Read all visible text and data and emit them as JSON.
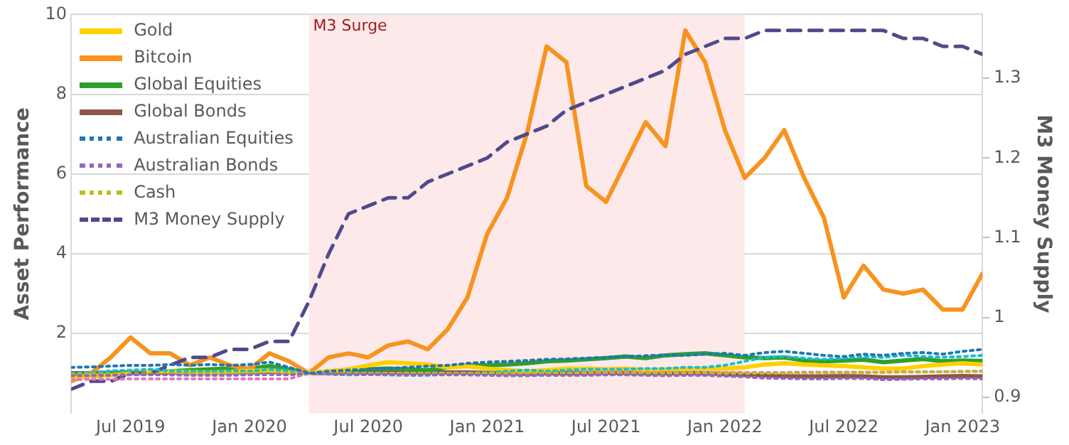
{
  "chart_data": {
    "type": "line",
    "ylabel": "Asset Performance",
    "y2label": "M3 Money Supply",
    "x": [
      "2019-04",
      "2019-05",
      "2019-06",
      "2019-07",
      "2019-08",
      "2019-09",
      "2019-10",
      "2019-11",
      "2019-12",
      "2020-01",
      "2020-02",
      "2020-03",
      "2020-04",
      "2020-05",
      "2020-06",
      "2020-07",
      "2020-08",
      "2020-09",
      "2020-10",
      "2020-11",
      "2020-12",
      "2021-01",
      "2021-02",
      "2021-03",
      "2021-04",
      "2021-05",
      "2021-06",
      "2021-07",
      "2021-08",
      "2021-09",
      "2021-10",
      "2021-11",
      "2021-12",
      "2022-01",
      "2022-02",
      "2022-03",
      "2022-04",
      "2022-05",
      "2022-06",
      "2022-07",
      "2022-08",
      "2022-09",
      "2022-10",
      "2022-11",
      "2022-12",
      "2023-01",
      "2023-02"
    ],
    "xlim": [
      "2019-04",
      "2023-02"
    ],
    "xticks": [
      {
        "value": "2019-07",
        "label": "Jul 2019"
      },
      {
        "value": "2020-01",
        "label": "Jan 2020"
      },
      {
        "value": "2020-07",
        "label": "Jul 2020"
      },
      {
        "value": "2021-01",
        "label": "Jan 2021"
      },
      {
        "value": "2021-07",
        "label": "Jul 2021"
      },
      {
        "value": "2022-01",
        "label": "Jan 2022"
      },
      {
        "value": "2022-07",
        "label": "Jul 2022"
      },
      {
        "value": "2023-01",
        "label": "Jan 2023"
      }
    ],
    "ylim": [
      0,
      10
    ],
    "yticks": [
      2,
      4,
      6,
      8,
      10
    ],
    "y2lim": [
      0.88,
      1.38
    ],
    "y2ticks": [
      0.9,
      1,
      1.1,
      1.2,
      1.3
    ],
    "grid": "y",
    "legend": "top left",
    "marker": "none",
    "bands": [
      {
        "axis": "x",
        "from": "2020-04",
        "to": "2022-02",
        "label": "M3 Surge",
        "color": "#fde9ea"
      }
    ],
    "series": [
      {
        "name": "Gold",
        "color": "#ffd000",
        "line_style": "solid",
        "values": [
          0.9,
          0.92,
          0.95,
          1.0,
          1.05,
          1.05,
          1.03,
          1.02,
          1.04,
          1.06,
          1.08,
          1.03,
          1.0,
          1.05,
          1.1,
          1.2,
          1.28,
          1.25,
          1.22,
          1.15,
          1.18,
          1.12,
          1.08,
          1.05,
          1.08,
          1.12,
          1.12,
          1.1,
          1.12,
          1.08,
          1.1,
          1.1,
          1.12,
          1.12,
          1.15,
          1.22,
          1.25,
          1.22,
          1.2,
          1.18,
          1.15,
          1.12,
          1.12,
          1.18,
          1.22,
          1.25,
          1.22
        ]
      },
      {
        "name": "Bitcoin",
        "color": "#f7931e",
        "line_style": "solid",
        "values": [
          0.8,
          1.0,
          1.4,
          1.9,
          1.5,
          1.5,
          1.2,
          1.4,
          1.2,
          1.1,
          1.5,
          1.3,
          1.0,
          1.4,
          1.5,
          1.4,
          1.7,
          1.8,
          1.6,
          2.1,
          2.9,
          4.5,
          5.4,
          7.0,
          9.2,
          8.8,
          5.7,
          5.3,
          6.3,
          7.3,
          6.7,
          9.6,
          8.8,
          7.1,
          5.9,
          6.4,
          7.1,
          5.9,
          4.9,
          2.9,
          3.7,
          3.1,
          3.0,
          3.1,
          2.6,
          2.6,
          3.5
        ]
      },
      {
        "name": "Global Equities",
        "color": "#2ca02c",
        "line_style": "solid",
        "values": [
          0.95,
          0.97,
          1.0,
          1.02,
          1.03,
          1.05,
          1.08,
          1.1,
          1.12,
          1.12,
          1.18,
          1.1,
          1.0,
          1.05,
          1.08,
          1.1,
          1.12,
          1.1,
          1.08,
          1.15,
          1.2,
          1.2,
          1.22,
          1.25,
          1.3,
          1.32,
          1.35,
          1.38,
          1.42,
          1.38,
          1.45,
          1.48,
          1.5,
          1.45,
          1.4,
          1.38,
          1.4,
          1.32,
          1.3,
          1.32,
          1.34,
          1.28,
          1.32,
          1.36,
          1.3,
          1.32,
          1.31
        ]
      },
      {
        "name": "Global Bonds",
        "color": "#8c564b",
        "line_style": "solid",
        "values": [
          1.0,
          1.0,
          1.01,
          1.02,
          1.02,
          1.02,
          1.01,
          1.01,
          1.02,
          1.03,
          1.04,
          1.02,
          1.0,
          1.01,
          1.02,
          1.02,
          1.02,
          1.02,
          1.02,
          1.02,
          1.02,
          1.01,
          1.0,
          0.99,
          1.0,
          1.0,
          1.0,
          1.01,
          1.01,
          1.0,
          1.0,
          1.0,
          1.0,
          0.98,
          0.96,
          0.95,
          0.93,
          0.92,
          0.92,
          0.93,
          0.92,
          0.9,
          0.9,
          0.91,
          0.92,
          0.93,
          0.92
        ]
      },
      {
        "name": "Australian Equities",
        "color": "#1f77b4",
        "line_style": "dotted",
        "values": [
          1.15,
          1.16,
          1.18,
          1.2,
          1.2,
          1.22,
          1.2,
          1.22,
          1.2,
          1.22,
          1.28,
          1.15,
          1.0,
          1.05,
          1.08,
          1.1,
          1.12,
          1.15,
          1.18,
          1.2,
          1.25,
          1.28,
          1.3,
          1.32,
          1.35,
          1.36,
          1.38,
          1.4,
          1.42,
          1.44,
          1.46,
          1.45,
          1.48,
          1.5,
          1.45,
          1.52,
          1.55,
          1.5,
          1.45,
          1.42,
          1.48,
          1.45,
          1.5,
          1.52,
          1.48,
          1.55,
          1.6
        ]
      },
      {
        "name": "Australian Bonds",
        "color": "#9467bd",
        "line_style": "dotted",
        "values": [
          0.94,
          0.94,
          0.95,
          0.96,
          0.96,
          0.96,
          0.95,
          0.95,
          0.95,
          0.96,
          0.97,
          0.96,
          1.0,
          0.98,
          0.97,
          0.97,
          0.97,
          0.96,
          0.96,
          0.96,
          0.96,
          0.95,
          0.94,
          0.94,
          0.95,
          0.95,
          0.95,
          0.96,
          0.96,
          0.95,
          0.94,
          0.95,
          0.95,
          0.93,
          0.91,
          0.88,
          0.87,
          0.86,
          0.86,
          0.87,
          0.87,
          0.84,
          0.85,
          0.86,
          0.86,
          0.87,
          0.86
        ]
      },
      {
        "name": "Cash",
        "color": "#bcbd22",
        "line_style": "dotted",
        "values": [
          0.98,
          0.98,
          0.98,
          0.99,
          0.99,
          0.99,
          0.99,
          0.99,
          1.0,
          1.0,
          1.0,
          1.0,
          1.0,
          1.0,
          1.0,
          1.0,
          1.0,
          1.0,
          1.0,
          1.0,
          1.0,
          1.0,
          1.0,
          1.0,
          1.0,
          1.0,
          1.0,
          1.0,
          1.0,
          1.0,
          1.0,
          1.0,
          1.0,
          1.0,
          1.0,
          1.0,
          1.0,
          1.0,
          1.01,
          1.01,
          1.02,
          1.02,
          1.03,
          1.03,
          1.04,
          1.04,
          1.05
        ]
      },
      {
        "color": "#17becf",
        "line_style": "dotted",
        "values": [
          1.0,
          1.02,
          1.06,
          1.08,
          1.1,
          1.06,
          1.04,
          1.04,
          1.06,
          1.05,
          1.1,
          1.06,
          1.0,
          0.98,
          0.96,
          0.97,
          0.96,
          0.95,
          0.95,
          0.98,
          1.0,
          1.02,
          1.05,
          1.08,
          1.05,
          1.08,
          1.1,
          1.1,
          1.1,
          1.12,
          1.12,
          1.15,
          1.15,
          1.2,
          1.3,
          1.4,
          1.42,
          1.38,
          1.35,
          1.38,
          1.42,
          1.4,
          1.45,
          1.42,
          1.4,
          1.42,
          1.45
        ]
      },
      {
        "color": "#e377c2",
        "line_style": "dotted",
        "values": [
          0.84,
          0.85,
          0.85,
          0.86,
          0.86,
          0.86,
          0.86,
          0.86,
          0.86,
          0.86,
          0.86,
          0.86,
          1.0,
          1.0,
          1.0,
          1.0,
          1.0,
          1.0,
          1.0,
          1.0,
          1.0,
          1.0,
          1.0,
          1.01,
          1.01,
          1.01,
          1.02,
          1.02,
          1.02,
          1.02,
          1.02,
          1.02,
          1.02,
          1.02,
          1.02,
          1.02,
          1.02,
          1.03,
          1.03,
          1.03,
          1.03,
          1.03,
          1.04,
          1.04,
          1.04,
          1.05,
          1.05
        ]
      },
      {
        "name": "M3 Money Supply",
        "color": "#4f4a8c",
        "line_style": "dashed",
        "axis": "y2",
        "values": [
          0.91,
          0.92,
          0.92,
          0.93,
          0.93,
          0.94,
          0.95,
          0.95,
          0.96,
          0.96,
          0.97,
          0.97,
          1.02,
          1.08,
          1.13,
          1.14,
          1.15,
          1.15,
          1.17,
          1.18,
          1.19,
          1.2,
          1.22,
          1.23,
          1.24,
          1.26,
          1.27,
          1.28,
          1.29,
          1.3,
          1.31,
          1.33,
          1.34,
          1.35,
          1.35,
          1.36,
          1.36,
          1.36,
          1.36,
          1.36,
          1.36,
          1.36,
          1.35,
          1.35,
          1.34,
          1.34,
          1.33
        ]
      }
    ]
  }
}
